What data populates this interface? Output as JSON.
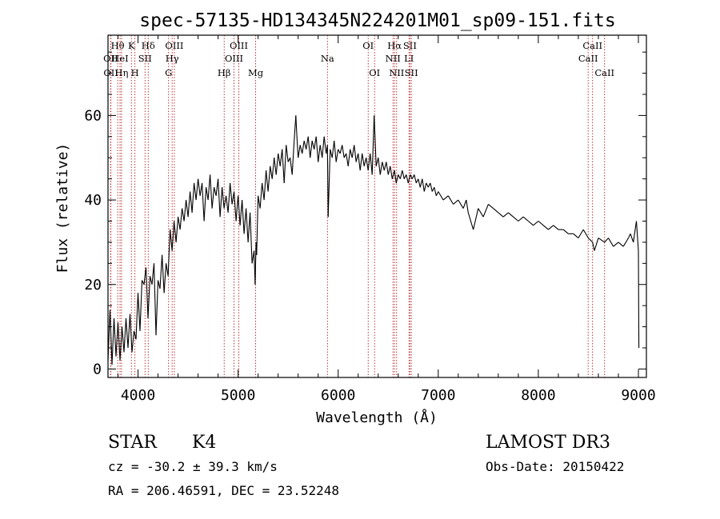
{
  "chart_data": {
    "type": "line",
    "title": "spec-57135-HD134345N224201M01_sp09-151.fits",
    "xlabel": "Wavelength (Å)",
    "ylabel": "Flux (relative)",
    "xlim": [
      3700,
      9080
    ],
    "ylim": [
      -2,
      79
    ],
    "xticks": [
      4000,
      5000,
      6000,
      7000,
      8000,
      9000
    ],
    "yticks": [
      0,
      20,
      40,
      60
    ],
    "series": [
      {
        "name": "spectrum",
        "x": [
          3700,
          3720,
          3740,
          3760,
          3780,
          3800,
          3820,
          3840,
          3860,
          3880,
          3900,
          3920,
          3940,
          3960,
          3980,
          4000,
          4020,
          4040,
          4060,
          4080,
          4100,
          4120,
          4140,
          4160,
          4180,
          4200,
          4220,
          4240,
          4260,
          4280,
          4300,
          4320,
          4340,
          4360,
          4380,
          4400,
          4420,
          4440,
          4460,
          4480,
          4500,
          4520,
          4540,
          4560,
          4580,
          4600,
          4620,
          4640,
          4660,
          4680,
          4700,
          4720,
          4740,
          4760,
          4780,
          4800,
          4820,
          4840,
          4860,
          4880,
          4900,
          4920,
          4940,
          4960,
          4980,
          5000,
          5020,
          5040,
          5060,
          5080,
          5100,
          5120,
          5140,
          5160,
          5170,
          5180,
          5185,
          5200,
          5220,
          5240,
          5260,
          5280,
          5300,
          5320,
          5340,
          5360,
          5380,
          5400,
          5420,
          5440,
          5460,
          5480,
          5500,
          5520,
          5540,
          5560,
          5577,
          5590,
          5600,
          5620,
          5640,
          5660,
          5680,
          5700,
          5720,
          5740,
          5760,
          5780,
          5800,
          5820,
          5840,
          5860,
          5880,
          5893,
          5900,
          5920,
          5940,
          5960,
          5980,
          6000,
          6020,
          6040,
          6060,
          6080,
          6100,
          6120,
          6140,
          6160,
          6180,
          6200,
          6220,
          6240,
          6260,
          6280,
          6300,
          6320,
          6340,
          6360,
          6380,
          6400,
          6420,
          6440,
          6460,
          6480,
          6500,
          6520,
          6540,
          6563,
          6580,
          6600,
          6620,
          6640,
          6660,
          6680,
          6700,
          6720,
          6740,
          6760,
          6780,
          6800,
          6820,
          6840,
          6860,
          6880,
          6900,
          6920,
          6940,
          6960,
          6980,
          7000,
          7050,
          7100,
          7150,
          7200,
          7250,
          7280,
          7300,
          7350,
          7400,
          7450,
          7500,
          7550,
          7600,
          7650,
          7700,
          7750,
          7800,
          7850,
          7900,
          7950,
          8000,
          8050,
          8100,
          8150,
          8200,
          8250,
          8300,
          8350,
          8400,
          8450,
          8500,
          8542,
          8560,
          8600,
          8662,
          8700,
          8750,
          8800,
          8850,
          8900,
          8920,
          8950,
          8980,
          9000,
          9005
        ],
        "values": [
          2,
          14,
          1,
          12,
          3,
          11,
          2,
          10,
          4,
          12,
          5,
          13,
          4,
          9,
          7,
          18,
          9,
          21,
          20,
          24,
          12,
          22,
          20,
          25,
          8,
          21,
          19,
          27,
          18,
          25,
          22,
          33,
          28,
          35,
          30,
          36,
          33,
          38,
          35,
          40,
          36,
          42,
          37,
          44,
          40,
          45,
          41,
          44,
          35,
          43,
          40,
          46,
          38,
          43,
          41,
          45,
          36,
          43,
          38,
          41,
          37,
          44,
          39,
          42,
          35,
          41,
          34,
          40,
          32,
          38,
          30,
          37,
          25,
          28,
          20,
          30,
          27,
          41,
          38,
          44,
          40,
          47,
          42,
          48,
          45,
          50,
          46,
          51,
          48,
          52,
          44,
          53,
          49,
          50,
          46,
          54,
          60,
          54,
          50,
          53,
          51,
          54,
          52,
          55,
          50,
          54,
          52,
          55,
          49,
          53,
          50,
          55,
          51,
          53,
          36,
          52,
          50,
          54,
          49,
          52,
          51,
          53,
          50,
          51,
          48,
          52,
          50,
          53,
          49,
          51,
          47,
          51,
          48,
          50,
          47,
          51,
          46,
          60,
          48,
          50,
          46,
          49,
          47,
          49,
          46,
          48,
          45,
          47,
          44,
          46,
          45,
          47,
          45,
          46,
          44,
          46,
          45,
          46,
          44,
          45,
          43,
          45,
          42,
          44,
          43,
          44,
          42,
          43,
          41,
          42,
          40,
          41,
          39,
          40,
          38,
          40,
          37,
          33,
          38,
          36,
          39,
          38,
          37,
          36,
          37,
          36,
          35,
          36,
          35,
          34,
          35,
          34,
          33,
          34,
          33,
          33,
          32,
          32,
          31,
          33,
          31,
          30,
          28,
          31,
          30,
          31,
          29,
          30,
          29,
          31,
          32,
          30,
          35,
          28,
          5
        ]
      }
    ],
    "line_markers": [
      {
        "label": "Hθ",
        "wl": 3797,
        "row": 1
      },
      {
        "label": "OII",
        "wl": 3727,
        "row": 2
      },
      {
        "label": "OII",
        "wl": 3729,
        "row": 3
      },
      {
        "label": "HeI",
        "wl": 3820,
        "row": 2
      },
      {
        "label": "Hη",
        "wl": 3835,
        "row": 3
      },
      {
        "label": "K",
        "wl": 3934,
        "row": 1
      },
      {
        "label": "SII",
        "wl": 4070,
        "row": 2
      },
      {
        "label": "H",
        "wl": 3969,
        "row": 3
      },
      {
        "label": "Hδ",
        "wl": 4102,
        "row": 1
      },
      {
        "label": "OIII",
        "wl": 4363,
        "row": 1
      },
      {
        "label": "Hγ",
        "wl": 4341,
        "row": 2
      },
      {
        "label": "G",
        "wl": 4305,
        "row": 3
      },
      {
        "label": "OIII",
        "wl": 5007,
        "row": 1
      },
      {
        "label": "OIII",
        "wl": 4959,
        "row": 2
      },
      {
        "label": "Hβ",
        "wl": 4861,
        "row": 3
      },
      {
        "label": "Mg",
        "wl": 5175,
        "row": 3
      },
      {
        "label": "Na",
        "wl": 5893,
        "row": 2
      },
      {
        "label": "OI",
        "wl": 6300,
        "row": 1
      },
      {
        "label": "OI",
        "wl": 6364,
        "row": 3
      },
      {
        "label": "Hα",
        "wl": 6563,
        "row": 1
      },
      {
        "label": "SII",
        "wl": 6717,
        "row": 1
      },
      {
        "label": "NII",
        "wl": 6548,
        "row": 2
      },
      {
        "label": "LI",
        "wl": 6708,
        "row": 2
      },
      {
        "label": "NII",
        "wl": 6584,
        "row": 3
      },
      {
        "label": "SII",
        "wl": 6731,
        "row": 3
      },
      {
        "label": "CaII",
        "wl": 8542,
        "row": 1
      },
      {
        "label": "CaII",
        "wl": 8498,
        "row": 2
      },
      {
        "label": "CaII",
        "wl": 8662,
        "row": 3
      }
    ]
  },
  "info": {
    "object_class": "STAR",
    "subclass": "K4",
    "survey": "LAMOST DR3",
    "cz": "cz = -30.2 ± 39.3 km/s",
    "obs_date": "Obs-Date: 20150422",
    "coords": "RA = 206.46591, DEC =  23.52248"
  }
}
